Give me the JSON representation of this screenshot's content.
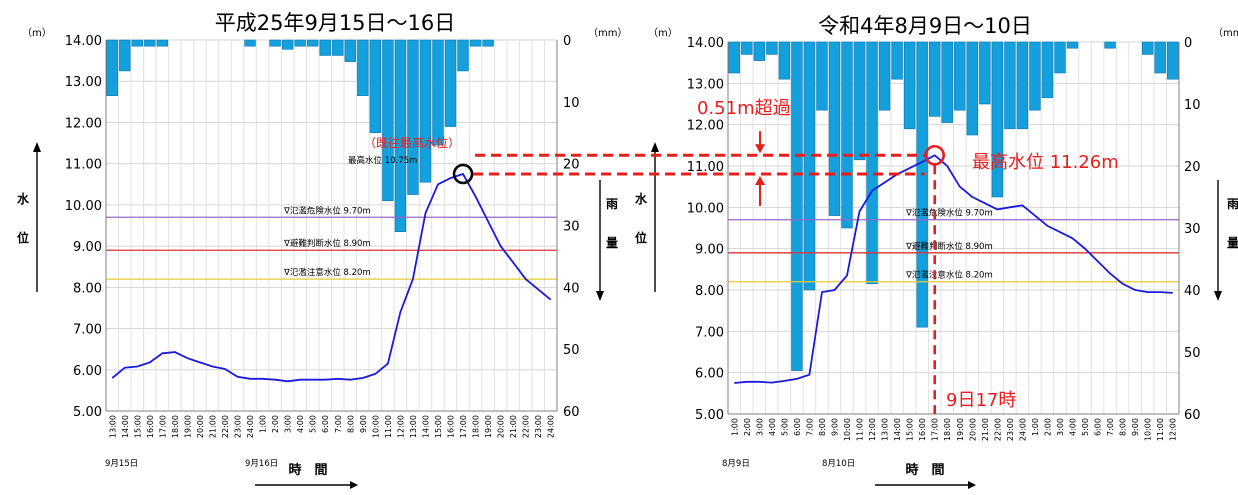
{
  "chart_data": [
    {
      "type": "line",
      "title": "平成25年9月15日～16日",
      "ylabel_left_unit": "（m）",
      "ylabel_right_unit": "（mm）",
      "ylabel_left": [
        "水",
        "位"
      ],
      "ylabel_right": [
        "雨",
        "量"
      ],
      "xlabel": "時　間",
      "date_labels": [
        "9月15日",
        "9月16日"
      ],
      "y_left_ticks": [
        "14.00",
        "13.00",
        "12.00",
        "11.00",
        "10.00",
        "9.00",
        "8.00",
        "7.00",
        "6.00",
        "5.00"
      ],
      "y_right_ticks": [
        "0",
        "10",
        "20",
        "30",
        "40",
        "50",
        "60"
      ],
      "ylim_left": [
        5,
        14
      ],
      "ylim_right": [
        60,
        0
      ],
      "x": [
        "13:00",
        "14:00",
        "15:00",
        "16:00",
        "17:00",
        "18:00",
        "19:00",
        "20:00",
        "21:00",
        "22:00",
        "23:00",
        "24:00",
        "1:00",
        "2:00",
        "3:00",
        "4:00",
        "5:00",
        "6:00",
        "7:00",
        "8:00",
        "9:00",
        "10:00",
        "11:00",
        "12:00",
        "13:00",
        "14:00",
        "15:00",
        "16:00",
        "17:00",
        "18:00",
        "19:00",
        "20:00",
        "21:00",
        "22:00",
        "23:00",
        "24:00"
      ],
      "series": [
        {
          "type": "line",
          "values": [
            5.8,
            6.05,
            6.08,
            6.18,
            6.4,
            6.43,
            6.28,
            6.18,
            6.08,
            6.02,
            5.83,
            5.78,
            5.78,
            5.76,
            5.72,
            5.76,
            5.76,
            5.76,
            5.78,
            5.76,
            5.8,
            5.9,
            6.15,
            7.4,
            8.2,
            9.8,
            10.5,
            10.65,
            10.75,
            10.2,
            9.6,
            9.0,
            8.6,
            8.2,
            7.95,
            7.7
          ]
        },
        {
          "type": "bar",
          "values": [
            9,
            5,
            1,
            1,
            1,
            0,
            0,
            0,
            0,
            0,
            0,
            1,
            0,
            1,
            1.5,
            1,
            1,
            2.5,
            2.5,
            3.5,
            9,
            15,
            26,
            31,
            25,
            23,
            17,
            14,
            5,
            1,
            1,
            0,
            0,
            0,
            0,
            0
          ]
        }
      ],
      "thresholds": [
        {
          "label": "∇氾濫危険水位  9.70m",
          "value": 9.7,
          "color": "#9966cc"
        },
        {
          "label": "∇避難判断水位  8.90m",
          "value": 8.9,
          "color": "#dd3333"
        },
        {
          "label": "∇氾濫注意水位  8.20m",
          "value": 8.2,
          "color": "#e8cc33"
        }
      ],
      "annotations": {
        "peak_label": "最高水位  10.75m",
        "record_label": "（既往最高水位）",
        "peak_value": 10.75,
        "peak_index": 28
      }
    },
    {
      "type": "line",
      "title": "令和4年8月9日～10日",
      "ylabel_left_unit": "（m）",
      "ylabel_right_unit": "（mm）",
      "ylabel_left": [
        "水",
        "位"
      ],
      "ylabel_right": [
        "雨",
        "量"
      ],
      "xlabel": "時　間",
      "date_labels": [
        "8月9日",
        "8月10日"
      ],
      "y_left_ticks": [
        "14.00",
        "13.00",
        "12.00",
        "11.00",
        "10.00",
        "9.00",
        "8.00",
        "7.00",
        "6.00",
        "5.00"
      ],
      "y_right_ticks": [
        "0",
        "10",
        "20",
        "30",
        "40",
        "50",
        "60"
      ],
      "ylim_left": [
        5,
        14
      ],
      "ylim_right": [
        60,
        0
      ],
      "x": [
        "1:00",
        "2:00",
        "3:00",
        "4:00",
        "5:00",
        "6:00",
        "7:00",
        "8:00",
        "9:00",
        "10:00",
        "11:00",
        "12:00",
        "13:00",
        "14:00",
        "15:00",
        "16:00",
        "17:00",
        "18:00",
        "19:00",
        "20:00",
        "21:00",
        "22:00",
        "23:00",
        "24:00",
        "1:00",
        "2:00",
        "3:00",
        "4:00",
        "5:00",
        "6:00",
        "7:00",
        "8:00",
        "9:00",
        "10:00",
        "11:00",
        "12:00"
      ],
      "series": [
        {
          "type": "line",
          "values": [
            5.75,
            5.78,
            5.78,
            5.76,
            5.8,
            5.85,
            5.95,
            7.95,
            8.0,
            8.35,
            9.9,
            10.4,
            10.6,
            10.8,
            10.95,
            11.1,
            11.26,
            11.0,
            10.5,
            10.25,
            10.1,
            9.95,
            10.0,
            10.05,
            9.8,
            9.55,
            9.4,
            9.25,
            9.0,
            8.7,
            8.4,
            8.15,
            8.0,
            7.95,
            7.95,
            7.93
          ],
          "markers": [
            "hollow-circle-at-peak"
          ]
        },
        {
          "type": "bar",
          "values": [
            5,
            2,
            3,
            2,
            6,
            53,
            40,
            11,
            28,
            30,
            19,
            39,
            11,
            6,
            14,
            46,
            12,
            13,
            11,
            15,
            10,
            25,
            14,
            14,
            11,
            9,
            5,
            1,
            0,
            0,
            1,
            0,
            0,
            2,
            5,
            6
          ]
        }
      ],
      "thresholds": [
        {
          "label": "∇氾濫危険水位  9.70m",
          "value": 9.7,
          "color": "#9966cc"
        },
        {
          "label": "∇避難判断水位  8.90m",
          "value": 8.9,
          "color": "#dd3333"
        },
        {
          "label": "∇氾濫注意水位  8.20m",
          "value": 8.2,
          "color": "#e8cc33"
        }
      ],
      "annotations": {
        "peak_label": "最高水位  11.26m",
        "exceed_label": "0.51m超過",
        "time_label": "9日17時",
        "peak_value": 11.26,
        "peak_index": 16
      }
    }
  ]
}
